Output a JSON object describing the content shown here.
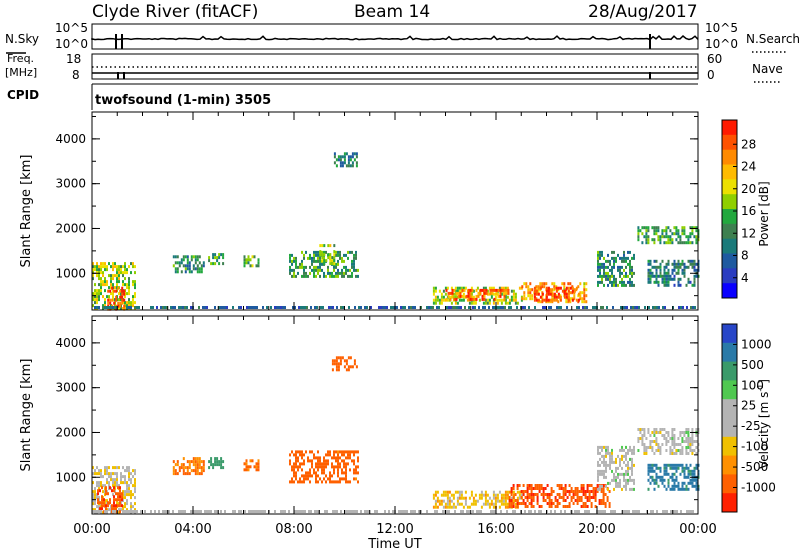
{
  "header": {
    "station": "Clyde River (fitACF)",
    "beam": "Beam 14",
    "date": "28/Aug/2017"
  },
  "nsky_panel": {
    "label": "N.Sky",
    "right_label": "N.Search",
    "left_ticks": [
      "10^5",
      "10^0"
    ],
    "right_ticks": [
      "10^5",
      "10^0"
    ]
  },
  "freq_panel": {
    "label_line1": "Freq.",
    "label_line2": "[MHz]",
    "right_label": "Nave",
    "left_ticks": [
      "18",
      "8"
    ],
    "right_ticks": [
      "60",
      "0"
    ]
  },
  "cpid_panel": {
    "label": "CPID",
    "program": "twofsound (1-min) 3505"
  },
  "chart_data": [
    {
      "type": "heatmap",
      "name": "Power",
      "ylabel": "Slant Range [km]",
      "ylim": [
        180,
        4600
      ],
      "yticks": [
        "1000",
        "2000",
        "3000",
        "4000"
      ],
      "colorbar_label": "Power [dB]",
      "colorbar_ticks": [
        "28",
        "24",
        "20",
        "16",
        "12",
        "8",
        "4"
      ],
      "colorbar_colors": [
        "#ff1a00",
        "#ff5200",
        "#ff8a00",
        "#ffbb00",
        "#ece000",
        "#8fcf00",
        "#22a83e",
        "#3d8050",
        "#1a7a7a",
        "#1e5aa0",
        "#2a3cc0",
        "#0a00ff"
      ],
      "xlim_hours": [
        0,
        24
      ],
      "regions": [
        {
          "t0": 0.0,
          "t1": 1.7,
          "r0": 200,
          "r1": 1250,
          "level": 0.55
        },
        {
          "t0": 0.6,
          "t1": 1.3,
          "r0": 200,
          "r1": 700,
          "level": 0.95
        },
        {
          "t0": 3.2,
          "t1": 4.4,
          "r0": 1050,
          "r1": 1400,
          "level": 0.35
        },
        {
          "t0": 4.6,
          "t1": 5.2,
          "r0": 1200,
          "r1": 1450,
          "level": 0.45
        },
        {
          "t0": 6.0,
          "t1": 6.6,
          "r0": 1150,
          "r1": 1400,
          "level": 0.45
        },
        {
          "t0": 7.8,
          "t1": 10.5,
          "r0": 900,
          "r1": 1500,
          "level": 0.4
        },
        {
          "t0": 9.0,
          "t1": 9.6,
          "r0": 1200,
          "r1": 1650,
          "level": 0.55
        },
        {
          "t0": 13.5,
          "t1": 17.0,
          "r0": 300,
          "r1": 700,
          "level": 0.55
        },
        {
          "t0": 14.0,
          "t1": 16.5,
          "r0": 400,
          "r1": 650,
          "level": 0.85
        },
        {
          "t0": 17.0,
          "t1": 19.6,
          "r0": 350,
          "r1": 800,
          "level": 0.75
        },
        {
          "t0": 17.5,
          "t1": 19.3,
          "r0": 400,
          "r1": 700,
          "level": 0.95
        },
        {
          "t0": 20.0,
          "t1": 21.5,
          "r0": 700,
          "r1": 1500,
          "level": 0.35
        },
        {
          "t0": 21.6,
          "t1": 24.0,
          "r0": 1700,
          "r1": 2050,
          "level": 0.4
        },
        {
          "t0": 22.0,
          "t1": 24.0,
          "r0": 700,
          "r1": 1300,
          "level": 0.3
        },
        {
          "t0": 9.5,
          "t1": 10.5,
          "r0": 3400,
          "r1": 3700,
          "level": 0.3
        }
      ]
    },
    {
      "type": "heatmap",
      "name": "Velocity",
      "ylabel": "Slant Range [km]",
      "ylim": [
        180,
        4600
      ],
      "yticks": [
        "1000",
        "2000",
        "3000",
        "4000"
      ],
      "colorbar_label": "Velocity [m s^-1]",
      "colorbar_ticks": [
        "1000",
        "500",
        "100",
        "25",
        "-25",
        "-100",
        "-500",
        "-1000"
      ],
      "colorbar_colors": [
        "#2846c8",
        "#2a7aa8",
        "#3a9a6a",
        "#50c850",
        "#b4b4b4",
        "#b4b4b4",
        "#f0c000",
        "#ff9000",
        "#ff6000",
        "#ff2000"
      ],
      "xlim_hours": [
        0,
        24
      ],
      "xticks": [
        "00:00",
        "04:00",
        "08:00",
        "12:00",
        "16:00",
        "20:00",
        "00:00"
      ],
      "xlabel": "Time UT",
      "regions": [
        {
          "t0": 0.0,
          "t1": 1.7,
          "r0": 200,
          "r1": 1250,
          "level": -20
        },
        {
          "t0": 0.2,
          "t1": 1.2,
          "r0": 200,
          "r1": 800,
          "level": -600
        },
        {
          "t0": 3.2,
          "t1": 4.4,
          "r0": 1100,
          "r1": 1450,
          "level": -300
        },
        {
          "t0": 4.6,
          "t1": 5.2,
          "r0": 1200,
          "r1": 1450,
          "level": 200
        },
        {
          "t0": 6.0,
          "t1": 6.6,
          "r0": 1150,
          "r1": 1400,
          "level": -400
        },
        {
          "t0": 7.8,
          "t1": 10.5,
          "r0": 900,
          "r1": 1600,
          "level": -450
        },
        {
          "t0": 13.5,
          "t1": 17.0,
          "r0": 300,
          "r1": 700,
          "level": -40
        },
        {
          "t0": 16.5,
          "t1": 20.5,
          "r0": 350,
          "r1": 850,
          "level": -600
        },
        {
          "t0": 20.0,
          "t1": 21.5,
          "r0": 700,
          "r1": 1700,
          "level": 0
        },
        {
          "t0": 21.6,
          "t1": 24.0,
          "r0": 1500,
          "r1": 2100,
          "level": 0
        },
        {
          "t0": 22.0,
          "t1": 24.0,
          "r0": 700,
          "r1": 1300,
          "level": 400
        },
        {
          "t0": 9.5,
          "t1": 10.5,
          "r0": 3400,
          "r1": 3700,
          "level": -500
        }
      ]
    }
  ]
}
